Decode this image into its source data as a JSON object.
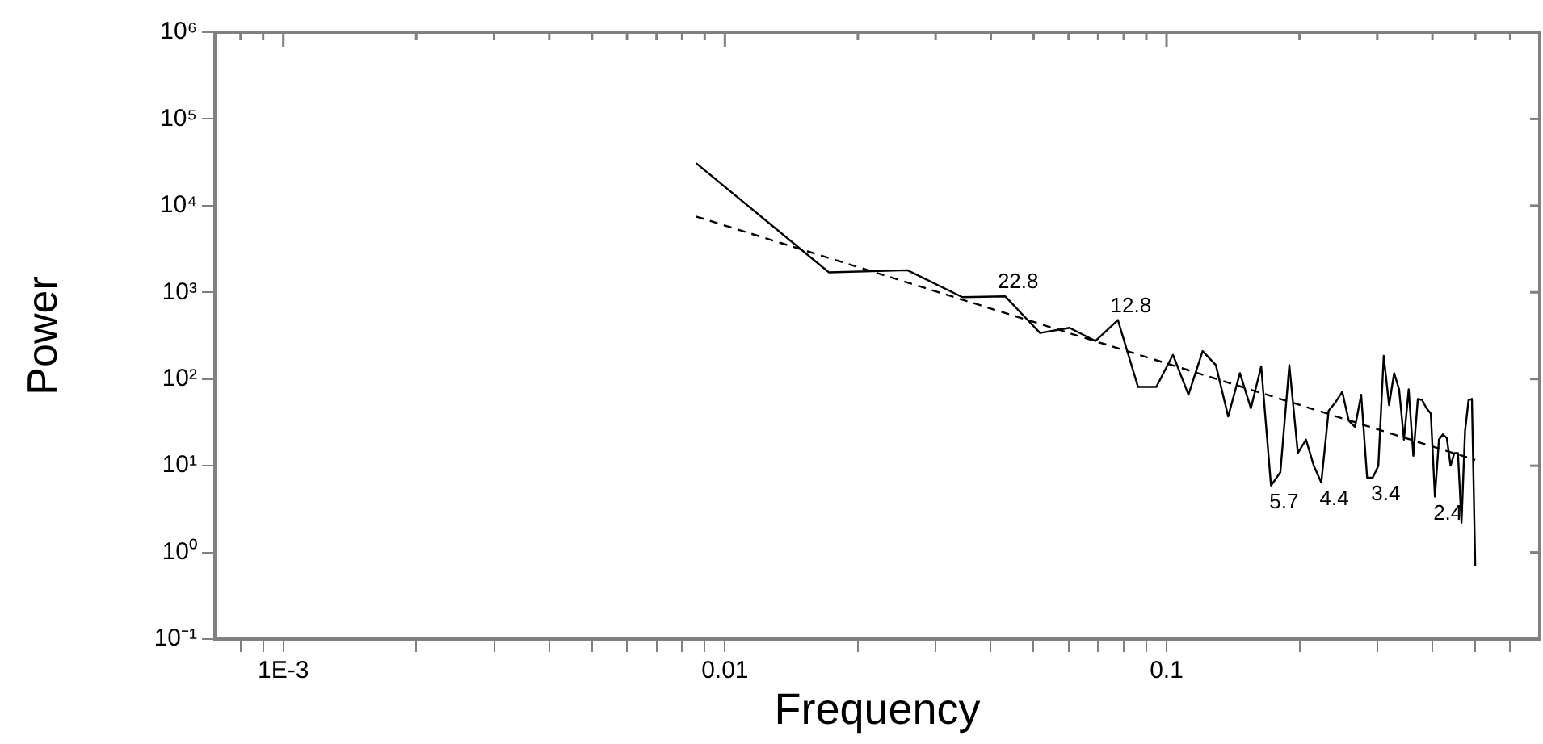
{
  "chart_data": {
    "type": "line",
    "xlabel": "Frequency",
    "ylabel": "Power",
    "log": "xy",
    "grid": false,
    "legend": false,
    "marker": "none",
    "xlim": [
      0.0007,
      0.7
    ],
    "ylim": [
      0.1,
      1000000
    ],
    "xticks": [
      {
        "value": 0.0008,
        "label": null
      },
      {
        "value": 0.0009,
        "label": null
      },
      {
        "value": 0.001,
        "label": "1E-3"
      },
      {
        "value": 0.002,
        "label": null
      },
      {
        "value": 0.003,
        "label": null
      },
      {
        "value": 0.004,
        "label": null
      },
      {
        "value": 0.005,
        "label": null
      },
      {
        "value": 0.006,
        "label": null
      },
      {
        "value": 0.007,
        "label": null
      },
      {
        "value": 0.008,
        "label": null
      },
      {
        "value": 0.009,
        "label": null
      },
      {
        "value": 0.01,
        "label": "0.01"
      },
      {
        "value": 0.02,
        "label": null
      },
      {
        "value": 0.03,
        "label": null
      },
      {
        "value": 0.04,
        "label": null
      },
      {
        "value": 0.05,
        "label": null
      },
      {
        "value": 0.06,
        "label": null
      },
      {
        "value": 0.07,
        "label": null
      },
      {
        "value": 0.08,
        "label": null
      },
      {
        "value": 0.09,
        "label": null
      },
      {
        "value": 0.1,
        "label": "0.1"
      },
      {
        "value": 0.2,
        "label": null
      },
      {
        "value": 0.3,
        "label": null
      },
      {
        "value": 0.4,
        "label": null
      },
      {
        "value": 0.5,
        "label": null
      },
      {
        "value": 0.6,
        "label": null
      }
    ],
    "yticks": [
      {
        "value": 0.1,
        "label": "10⁻¹"
      },
      {
        "value": 1,
        "label": "10⁰"
      },
      {
        "value": 10,
        "label": "10¹"
      },
      {
        "value": 100,
        "label": "10²"
      },
      {
        "value": 1000,
        "label": "10³"
      },
      {
        "value": 10000,
        "label": "10⁴"
      },
      {
        "value": 100000,
        "label": "10⁵"
      },
      {
        "value": 1000000,
        "label": "10⁶"
      }
    ],
    "series": [
      {
        "type": "line",
        "color": "#000000",
        "line_style": "solid",
        "x": [
          0.0086,
          0.0172,
          0.0259,
          0.0345,
          0.0431,
          0.0517,
          0.0603,
          0.069,
          0.0776,
          0.0862,
          0.0948,
          0.1034,
          0.1121,
          0.1207,
          0.1293,
          0.1379,
          0.1466,
          0.1552,
          0.1638,
          0.1724,
          0.181,
          0.1897,
          0.1983,
          0.2069,
          0.2155,
          0.2241,
          0.2328,
          0.2414,
          0.25,
          0.2586,
          0.2672,
          0.2759,
          0.2845,
          0.2931,
          0.3017,
          0.3103,
          0.319,
          0.3276,
          0.3362,
          0.3448,
          0.3534,
          0.3621,
          0.3707,
          0.3793,
          0.3879,
          0.3966,
          0.4052,
          0.4138,
          0.4224,
          0.431,
          0.4397,
          0.4483,
          0.4569,
          0.4655,
          0.4741,
          0.4828,
          0.4914,
          0.5
        ],
        "values": [
          31000,
          1700,
          1800,
          880,
          900,
          340,
          390,
          275,
          480,
          81,
          81,
          190,
          66,
          210,
          145,
          37,
          117,
          46,
          140,
          5.9,
          8.4,
          145,
          14,
          20,
          10,
          6.4,
          43,
          54,
          71,
          33,
          28,
          66,
          7.3,
          7.3,
          10,
          185,
          50,
          117,
          76,
          20,
          76,
          13,
          59,
          57,
          46,
          40,
          4.4,
          20,
          23,
          21,
          10,
          14,
          14,
          2.2,
          25,
          57,
          59,
          0.7
        ]
      },
      {
        "type": "line",
        "color": "#000000",
        "line_style": "dashed",
        "x": [
          0.0086,
          0.5
        ],
        "values": [
          7500,
          11.7
        ]
      }
    ],
    "annotations": [
      {
        "text": "22.8",
        "x": 0.0431,
        "y": 900
      },
      {
        "text": "12.8",
        "x": 0.0776,
        "y": 480
      },
      {
        "text": "5.7",
        "x": 0.1724,
        "y": 5.9
      },
      {
        "text": "4.4",
        "x": 0.2241,
        "y": 6.4
      },
      {
        "text": "3.4",
        "x": 0.2931,
        "y": 7.3
      },
      {
        "text": "2.4",
        "x": 0.4052,
        "y": 4.4
      }
    ]
  }
}
